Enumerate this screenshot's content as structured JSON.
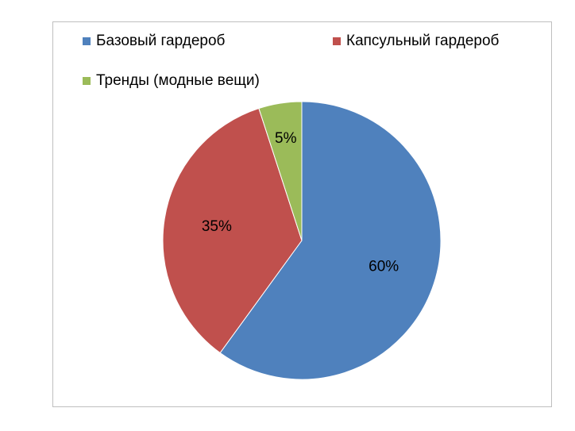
{
  "chart_data": {
    "type": "pie",
    "categories": [
      "Базовый гардероб",
      "Капсульный гардероб",
      "Тренды (модные вещи)"
    ],
    "values": [
      60,
      35,
      5
    ],
    "value_labels": [
      "60%",
      "35%",
      "5%"
    ],
    "colors": [
      "#4f81bd",
      "#c0504d",
      "#9bbb59"
    ],
    "legend": "top"
  }
}
